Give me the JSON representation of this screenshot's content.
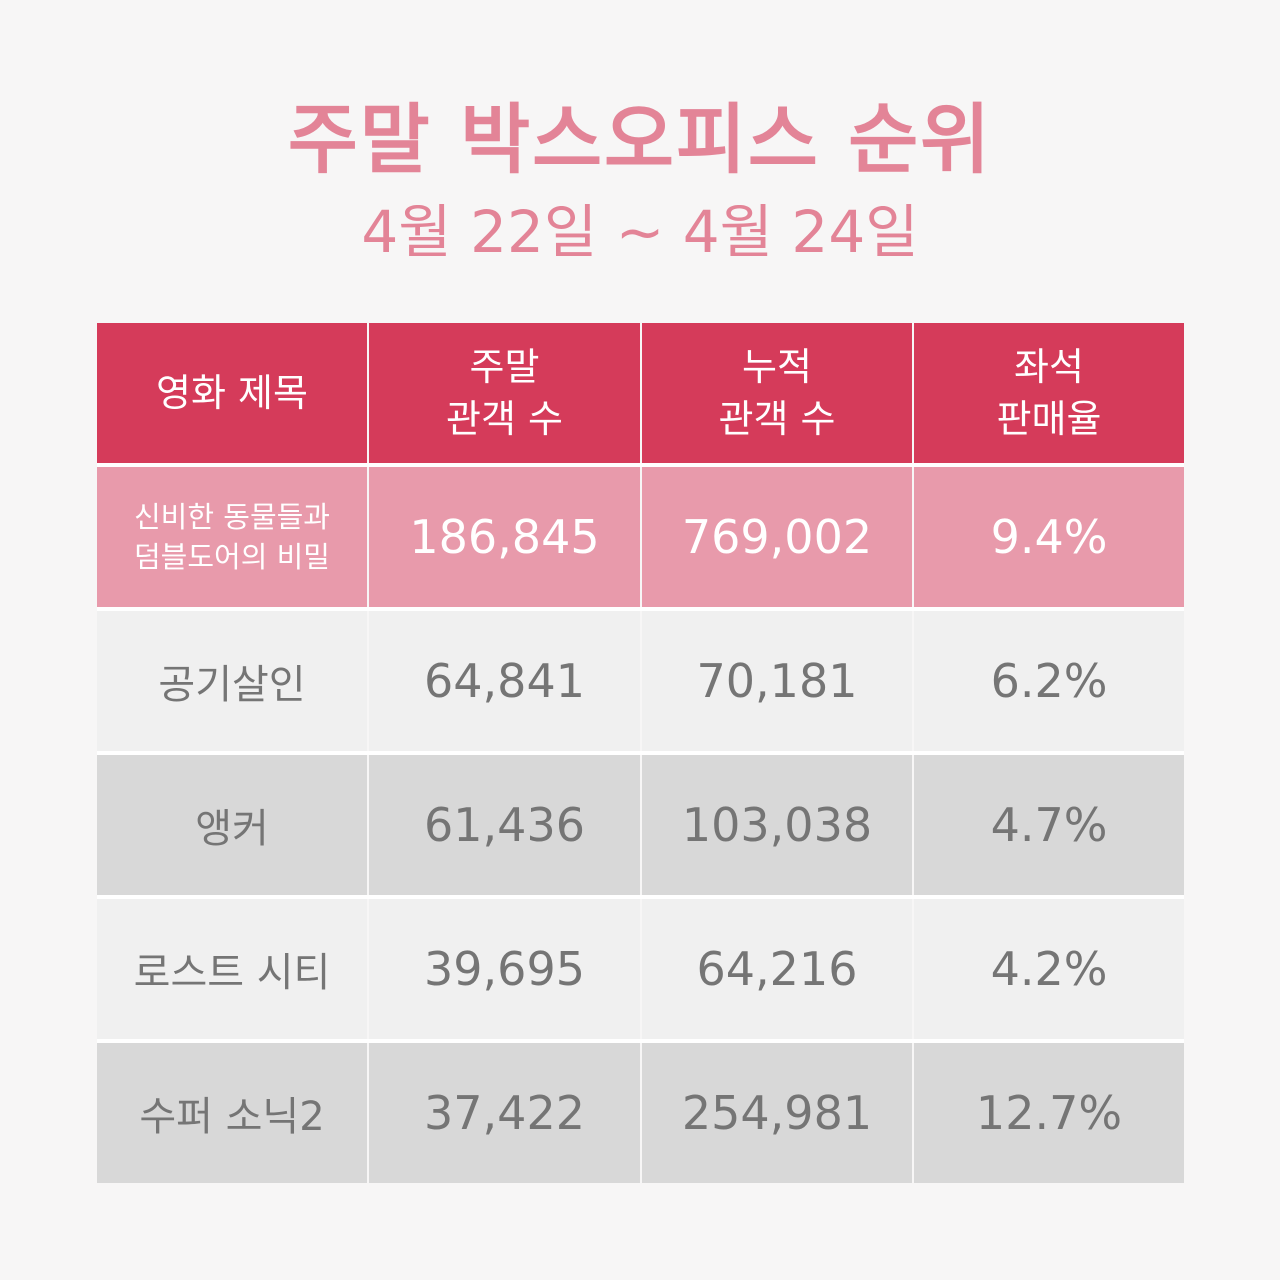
{
  "title": "주말 박스오피스 순위",
  "subtitle": "4월 22일 ~ 4월 24일",
  "colors": {
    "title": "#e38497",
    "header_bg": "#d53b5a",
    "top_row_bg": "#e89aab",
    "light_row_bg": "#f0f0f0",
    "dark_row_bg": "#d8d8d8",
    "body_text": "#757575"
  },
  "table": {
    "headers": [
      "영화 제목",
      "주말\n관객 수",
      "누적\n관객 수",
      "좌석\n판매율"
    ],
    "rows": [
      {
        "title": "신비한 동물들과\n덤블도어의 비밀",
        "weekend": "186,845",
        "cumulative": "769,002",
        "seat_rate": "9.4%"
      },
      {
        "title": "공기살인",
        "weekend": "64,841",
        "cumulative": "70,181",
        "seat_rate": "6.2%"
      },
      {
        "title": "앵커",
        "weekend": "61,436",
        "cumulative": "103,038",
        "seat_rate": "4.7%"
      },
      {
        "title": "로스트 시티",
        "weekend": "39,695",
        "cumulative": "64,216",
        "seat_rate": "4.2%"
      },
      {
        "title": "수퍼 소닉2",
        "weekend": "37,422",
        "cumulative": "254,981",
        "seat_rate": "12.7%"
      }
    ]
  },
  "chart_data": {
    "type": "table",
    "title": "주말 박스오피스 순위",
    "subtitle": "4월 22일 ~ 4월 24일",
    "columns": [
      "영화 제목",
      "주말 관객 수",
      "누적 관객 수",
      "좌석 판매율"
    ],
    "rows": [
      [
        "신비한 동물들과 덤블도어의 비밀",
        186845,
        769002,
        9.4
      ],
      [
        "공기살인",
        64841,
        70181,
        6.2
      ],
      [
        "앵커",
        61436,
        103038,
        4.7
      ],
      [
        "로스트 시티",
        39695,
        64216,
        4.2
      ],
      [
        "수퍼 소닉2",
        37422,
        254981,
        12.7
      ]
    ]
  }
}
